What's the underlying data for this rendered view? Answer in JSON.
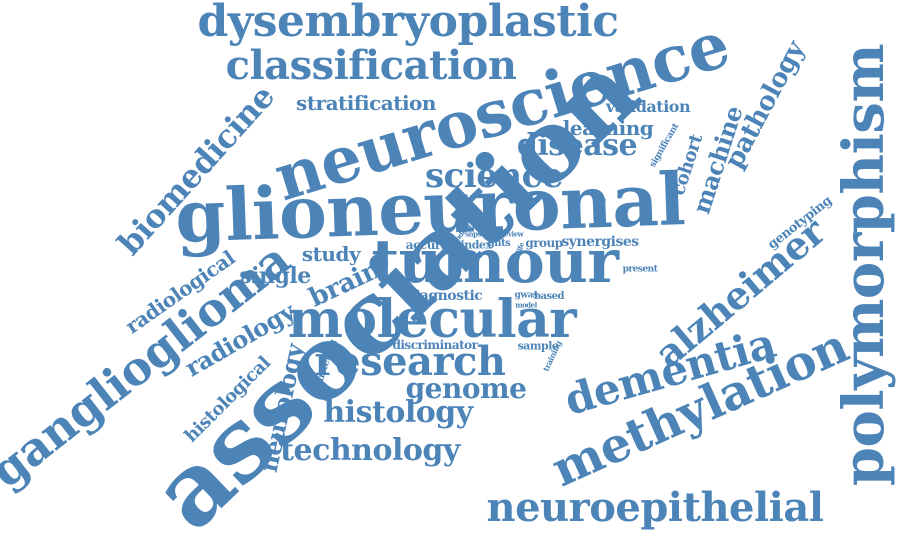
{
  "palette": {
    "word_color": "#4d84b8",
    "background": "#ffffff"
  },
  "words": {
    "association": "association",
    "glioneuronal": "glioneuronal",
    "neuroscience": "neuroscience",
    "polymorphism": "polymorphism",
    "tumour": "tumour",
    "molecular": "molecular",
    "dysembryoplastic": "dysembryoplastic",
    "methylation": "methylation",
    "ganglioglioma": "ganglioglioma",
    "classification": "classification",
    "research": "research",
    "dementia": "dementia",
    "neuroepithelial": "neuroepithelial",
    "alzheimer": "alzheimer",
    "biomedicine": "biomedicine",
    "science": "science",
    "disease": "disease",
    "histology": "histology",
    "technology": "technology",
    "genome": "genome",
    "pathology": "pathology",
    "machine": "machine",
    "neurology": "neurology",
    "stratification": "stratification",
    "radiological": "radiological",
    "radiology": "radiology",
    "brain": "brain",
    "single": "single",
    "learning": "learning",
    "histological": "histological",
    "study": "study",
    "cohort": "cohort",
    "validation": "validation",
    "genotyping": "genotyping",
    "diagnostic": "diagnostic",
    "synergises": "synergises",
    "accurate": "accurate",
    "index": "index",
    "gnts": "gnts",
    "group": "group",
    "discriminator": "discriminator",
    "sample": "sample",
    "clustering": "clustering",
    "significant": "significant",
    "present": "present",
    "based": "based",
    "gwas": "gwas",
    "model": "model",
    "training": "training",
    "analysis": "analysis",
    "snps": "snps",
    "review": "review",
    "life": "life",
    "finding": "finding"
  }
}
